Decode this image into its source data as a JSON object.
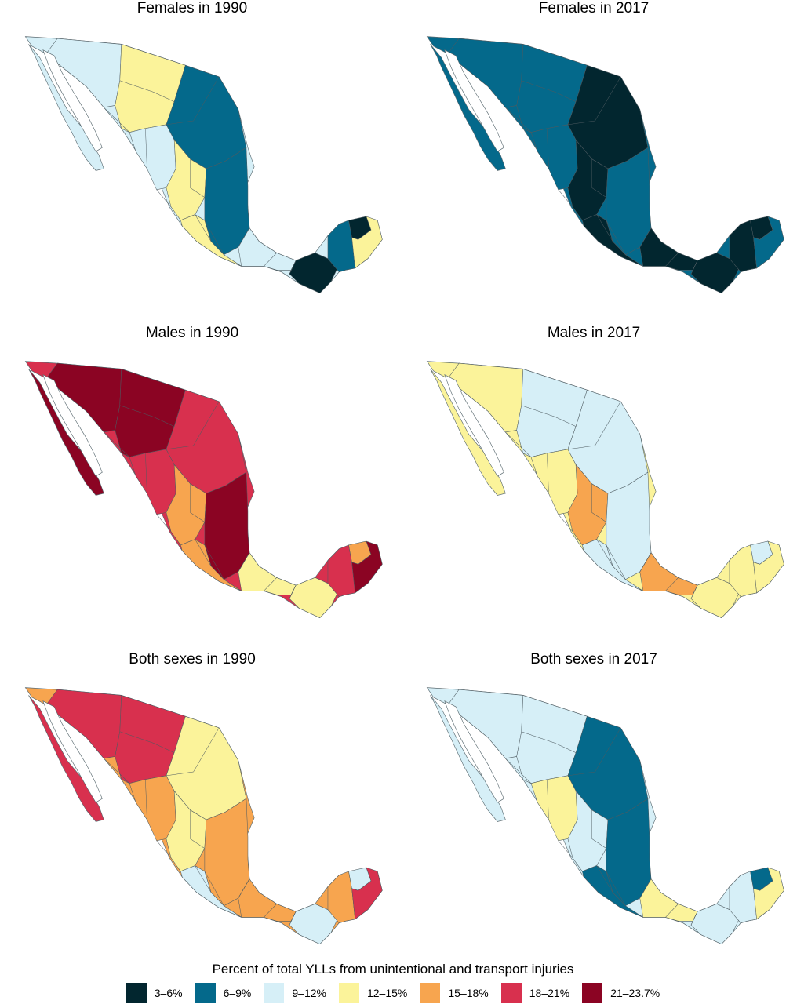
{
  "legend": {
    "title": "Percent of total YLLs from unintentional and transport injuries",
    "items": [
      {
        "label": "3–6%",
        "color": "#02262f"
      },
      {
        "label": "6–9%",
        "color": "#04698b"
      },
      {
        "label": "9–12%",
        "color": "#d6eff7"
      },
      {
        "label": "12–15%",
        "color": "#fbf39a"
      },
      {
        "label": "15–18%",
        "color": "#f7a54f"
      },
      {
        "label": "18–21%",
        "color": "#d8304e"
      },
      {
        "label": "21–23.7%",
        "color": "#8b0423"
      }
    ]
  },
  "panels": [
    {
      "title": "Females in 1990",
      "base": "#d6eff7",
      "regions": {
        "nw": "#d6eff7",
        "n": "#fbf39a",
        "ne": "#04698b",
        "center_w": "#d6eff7",
        "center": "#fbf39a",
        "east": "#04698b",
        "south": "#fbf39a",
        "isthmus": "#d6eff7",
        "se": "#02262f",
        "yuc": "#04698b",
        "yuc_tip": "#02262f",
        "yuc_e": "#fbf39a"
      }
    },
    {
      "title": "Females in 2017",
      "base": "#04698b",
      "regions": {
        "nw": "#04698b",
        "n": "#04698b",
        "ne": "#02262f",
        "center_w": "#04698b",
        "center": "#02262f",
        "east": "#04698b",
        "south": "#02262f",
        "isthmus": "#02262f",
        "se": "#02262f",
        "yuc": "#02262f",
        "yuc_tip": "#02262f",
        "yuc_e": "#04698b"
      }
    },
    {
      "title": "Males in 1990",
      "base": "#d8304e",
      "regions": {
        "nw": "#8b0423",
        "n": "#8b0423",
        "ne": "#d8304e",
        "center_w": "#d8304e",
        "center": "#f7a54f",
        "east": "#8b0423",
        "south": "#f7a54f",
        "isthmus": "#fbf39a",
        "se": "#fbf39a",
        "yuc": "#d8304e",
        "yuc_tip": "#f7a54f",
        "yuc_e": "#8b0423"
      }
    },
    {
      "title": "Males in 2017",
      "base": "#fbf39a",
      "regions": {
        "nw": "#fbf39a",
        "n": "#d6eff7",
        "ne": "#d6eff7",
        "center_w": "#fbf39a",
        "center": "#f7a54f",
        "east": "#d6eff7",
        "south": "#d6eff7",
        "isthmus": "#f7a54f",
        "se": "#fbf39a",
        "yuc": "#fbf39a",
        "yuc_tip": "#d6eff7",
        "yuc_e": "#fbf39a"
      }
    },
    {
      "title": "Both sexes in 1990",
      "base": "#f7a54f",
      "regions": {
        "nw": "#d8304e",
        "n": "#d8304e",
        "ne": "#fbf39a",
        "center_w": "#f7a54f",
        "center": "#fbf39a",
        "east": "#f7a54f",
        "south": "#d6eff7",
        "isthmus": "#f7a54f",
        "se": "#d6eff7",
        "yuc": "#f7a54f",
        "yuc_tip": "#d6eff7",
        "yuc_e": "#d8304e"
      }
    },
    {
      "title": "Both sexes in 2017",
      "base": "#d6eff7",
      "regions": {
        "nw": "#d6eff7",
        "n": "#d6eff7",
        "ne": "#04698b",
        "center_w": "#fbf39a",
        "center": "#d6eff7",
        "east": "#04698b",
        "south": "#04698b",
        "isthmus": "#fbf39a",
        "se": "#d6eff7",
        "yuc": "#d6eff7",
        "yuc_tip": "#04698b",
        "yuc_e": "#fbf39a"
      }
    }
  ]
}
